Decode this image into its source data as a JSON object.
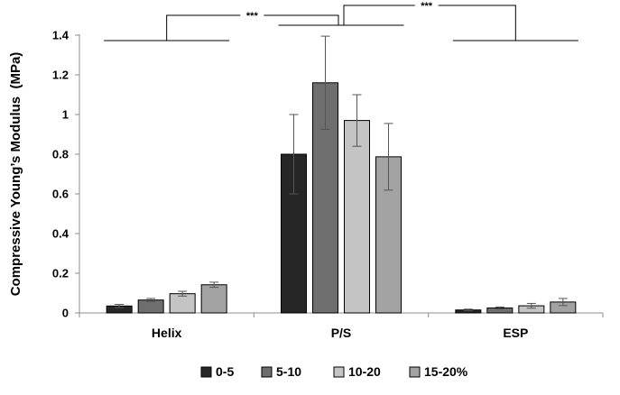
{
  "chart_data": {
    "type": "bar",
    "title": "",
    "xlabel": "",
    "ylabel": "Compressive Young’s Modulus  (MPa)",
    "ylim": [
      0,
      1.4
    ],
    "yticks": [
      "0",
      "0.2",
      "0.4",
      "0.6",
      "0.8",
      "1",
      "1.2",
      "1.4"
    ],
    "grid": false,
    "legend_position": "bottom",
    "categories": [
      "Helix",
      "P/S",
      "ESP"
    ],
    "series": [
      {
        "name": "0-5",
        "color": "#262626",
        "values": [
          0.035,
          0.8,
          0.015
        ],
        "errors": [
          0.008,
          0.2,
          0.004
        ]
      },
      {
        "name": "5-10",
        "color": "#6e6e6e",
        "values": [
          0.065,
          1.16,
          0.025
        ],
        "errors": [
          0.008,
          0.235,
          0.005
        ]
      },
      {
        "name": "10-20",
        "color": "#c4c4c4",
        "values": [
          0.097,
          0.97,
          0.036
        ],
        "errors": [
          0.012,
          0.13,
          0.012
        ]
      },
      {
        "name": "15-20%",
        "color": "#a3a3a3",
        "values": [
          0.142,
          0.787,
          0.055
        ],
        "errors": [
          0.013,
          0.168,
          0.018
        ]
      }
    ],
    "annotations": [
      {
        "label": "***",
        "between": [
          "Helix",
          "P/S"
        ]
      },
      {
        "label": "***",
        "between": [
          "P/S",
          "ESP"
        ]
      }
    ]
  }
}
